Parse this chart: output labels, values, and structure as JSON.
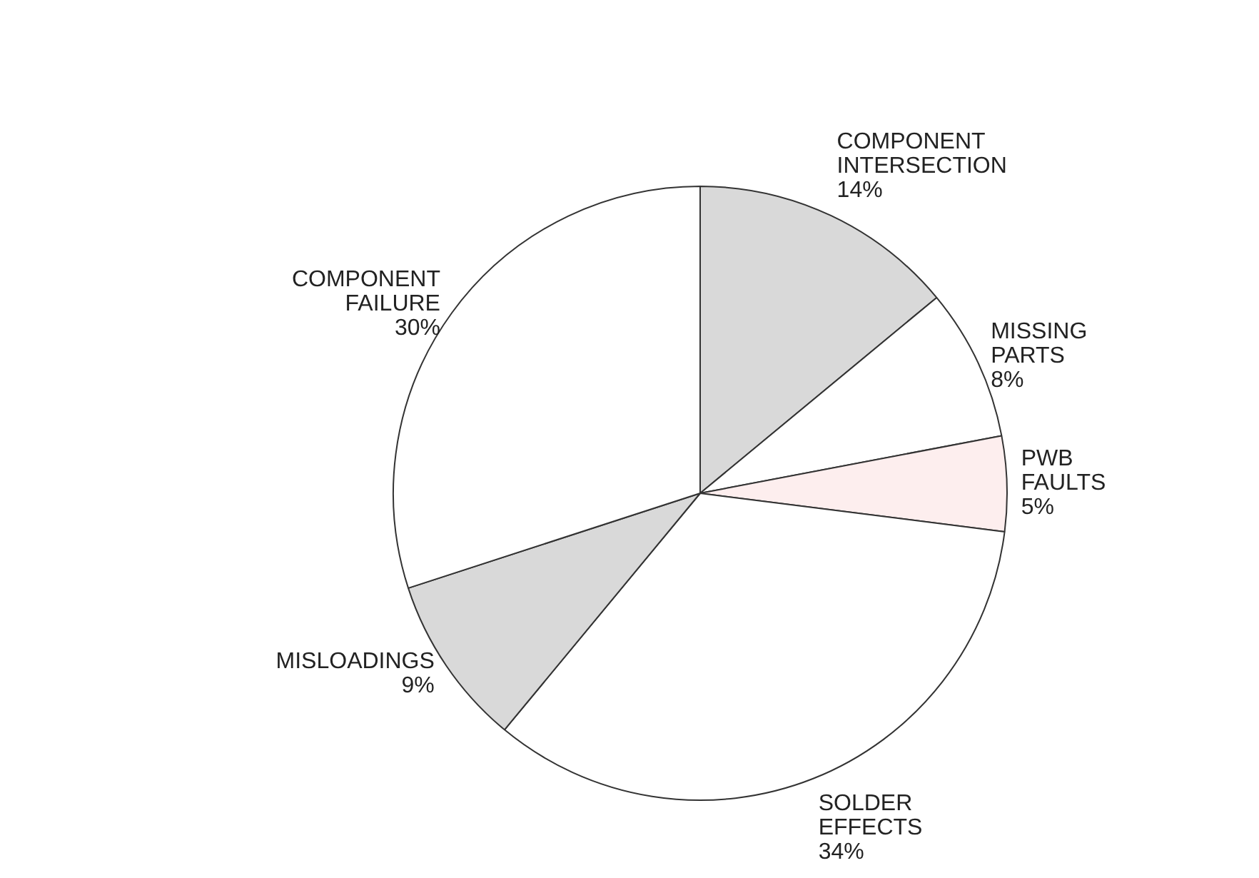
{
  "chart_data": {
    "type": "pie",
    "categories": [
      "COMPONENT INTERSECTION",
      "MISSING PARTS",
      "PWB FAULTS",
      "SOLDER EFFECTS",
      "MISLOADINGS",
      "COMPONENT FAILURE"
    ],
    "values": [
      14,
      8,
      5,
      34,
      9,
      30
    ],
    "colors": [
      "#d9d9d9",
      "#ffffff",
      "#fdeeee",
      "#ffffff",
      "#d9d9d9",
      "#ffffff"
    ],
    "value_labels": [
      "14%",
      "8%",
      "5%",
      "34%",
      "9%",
      "30%"
    ]
  }
}
